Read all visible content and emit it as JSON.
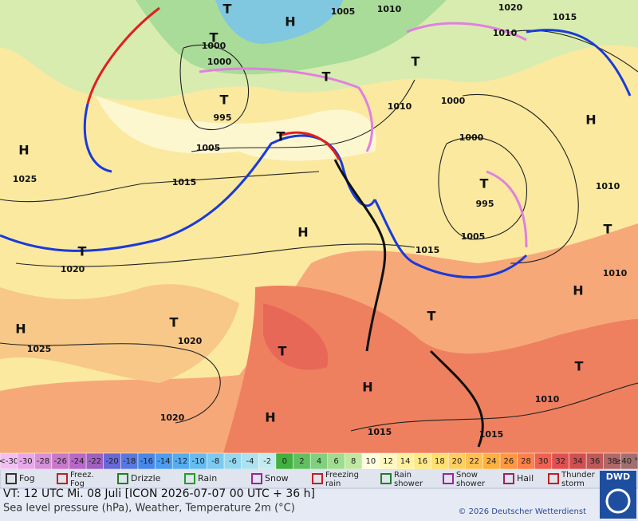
{
  "map": {
    "pressure_labels": [
      "1005",
      "1010",
      "1020",
      "1015",
      "1010",
      "1000",
      "1000",
      "995",
      "1005",
      "1015",
      "1010",
      "1000",
      "1000",
      "995",
      "1005",
      "1015",
      "1010",
      "1010",
      "1025",
      "1020",
      "1020",
      "1025",
      "1020",
      "1015",
      "1015",
      "1010"
    ],
    "centers": [
      "T",
      "H",
      "T",
      "T",
      "T",
      "T",
      "H",
      "H",
      "T",
      "T",
      "H",
      "T",
      "T",
      "H",
      "T",
      "H",
      "T",
      "T",
      "H",
      "T",
      "H"
    ]
  },
  "scale": {
    "low_label": "<-30",
    "high_label": "≥40 °C",
    "values": [
      -30,
      -28,
      -26,
      -24,
      -22,
      -20,
      -18,
      -16,
      -14,
      -12,
      -10,
      -8,
      -6,
      -4,
      -2,
      0,
      2,
      4,
      6,
      8,
      10,
      12,
      14,
      16,
      18,
      20,
      22,
      24,
      26,
      28,
      30,
      32,
      34,
      36,
      38
    ],
    "colors": [
      "#e8a8e8",
      "#d890d8",
      "#c878c8",
      "#b868c8",
      "#a060c0",
      "#6868d8",
      "#5878e0",
      "#4888e8",
      "#4c9cf0",
      "#56acf0",
      "#64bcf0",
      "#7ccaf0",
      "#94d8f0",
      "#acE2f0",
      "#c4ecf0",
      "#40b040",
      "#60c060",
      "#80d080",
      "#a0dc90",
      "#c0e8a0",
      "#ffffe0",
      "#fff8c0",
      "#fff0a0",
      "#ffe888",
      "#ffe070",
      "#ffd060",
      "#ffc050",
      "#ffb040",
      "#ff9840",
      "#ff8048",
      "#f06050",
      "#e05050",
      "#d05050",
      "#c05858",
      "#b06868"
    ],
    "low_color": "#f0c0f0",
    "high_color": "#a07070"
  },
  "legend": [
    "Fog",
    "Freez. Fog",
    "Drizzle",
    "Rain",
    "Snow",
    "Freezing rain",
    "Rain shower",
    "Snow shower",
    "Hail",
    "Thunder storm"
  ],
  "footer": {
    "valid_time": "VT: 12 UTC Mi.   08 Juli [ICON 2026-07-07  00 UTC + 36 h]",
    "description": "Sea level pressure (hPa), Weather, Temperature 2m (°C)",
    "copyright": "© 2026 Deutscher Wetterdienst",
    "logo": "DWD"
  }
}
